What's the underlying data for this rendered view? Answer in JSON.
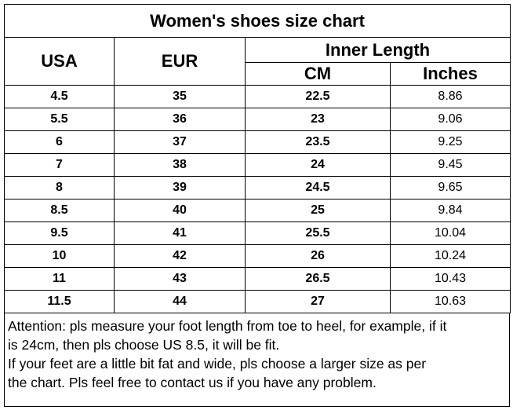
{
  "title": "Women's shoes size chart",
  "header": {
    "usa": "USA",
    "eur": "EUR",
    "group": "Inner Length",
    "cm": "CM",
    "inches": "Inches"
  },
  "rows": [
    [
      "4.5",
      "35",
      "22.5",
      "8.86"
    ],
    [
      "5.5",
      "36",
      "23",
      "9.06"
    ],
    [
      "6",
      "37",
      "23.5",
      "9.25"
    ],
    [
      "7",
      "38",
      "24",
      "9.45"
    ],
    [
      "8",
      "39",
      "24.5",
      "9.65"
    ],
    [
      "8.5",
      "40",
      "25",
      "9.84"
    ],
    [
      "9.5",
      "41",
      "25.5",
      "10.04"
    ],
    [
      "10",
      "42",
      "26",
      "10.24"
    ],
    [
      "11",
      "43",
      "26.5",
      "10.43"
    ],
    [
      "11.5",
      "44",
      "27",
      "10.63"
    ]
  ],
  "note": [
    "Attention: pls measure your foot length from toe to heel, for example, if it",
    "is 24cm, then pls choose US 8.5, it will be fit.",
    "If your feet are a little bit fat and wide, pls choose a larger size as per",
    "the chart. Pls feel free to contact us if you have any problem."
  ]
}
